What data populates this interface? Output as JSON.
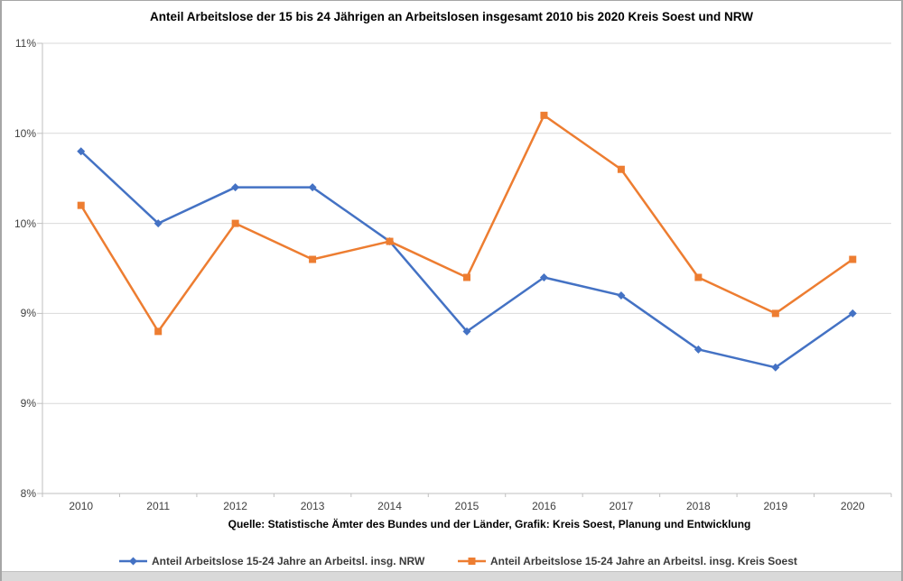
{
  "title": "Anteil Arbeitslose der 15 bis 24 Jährigen an Arbeitslosen insgesamt 2010 bis 2020 Kreis Soest und NRW",
  "source_note": "Quelle: Statistische Ämter des Bundes und der Länder, Grafik: Kreis Soest, Planung und Entwicklung",
  "chart_data": {
    "type": "line",
    "title": "Anteil Arbeitslose der 15 bis 24 Jährigen an Arbeitslosen insgesamt 2010 bis 2020 Kreis Soest und NRW",
    "categories": [
      "2010",
      "2011",
      "2012",
      "2013",
      "2014",
      "2015",
      "2016",
      "2017",
      "2018",
      "2019",
      "2020"
    ],
    "series": [
      {
        "name": "Anteil Arbeitslose 15-24 Jahre an Arbeitsl. insg. NRW",
        "values": [
          10.1,
          9.7,
          9.9,
          9.9,
          9.6,
          9.1,
          9.4,
          9.3,
          9.0,
          8.9,
          9.2
        ],
        "color": "#4472C4",
        "marker": "diamond"
      },
      {
        "name": "Anteil Arbeitslose 15-24 Jahre an Arbeitsl. insg. Kreis Soest",
        "values": [
          9.8,
          9.1,
          9.7,
          9.5,
          9.6,
          9.4,
          10.3,
          10.0,
          9.4,
          9.2,
          9.5
        ],
        "color": "#ED7D31",
        "marker": "square"
      }
    ],
    "xlabel": "",
    "ylabel": "",
    "y_axis": {
      "min": 8.2,
      "max": 10.7,
      "step": 0.5,
      "tick_labels": [
        "11%",
        "10%",
        "10%",
        "9%",
        "9%",
        "8%"
      ]
    },
    "grid": true,
    "legend_position": "bottom",
    "gridline_color": "#D9D9D9",
    "axis_color": "#BFBFBF"
  }
}
